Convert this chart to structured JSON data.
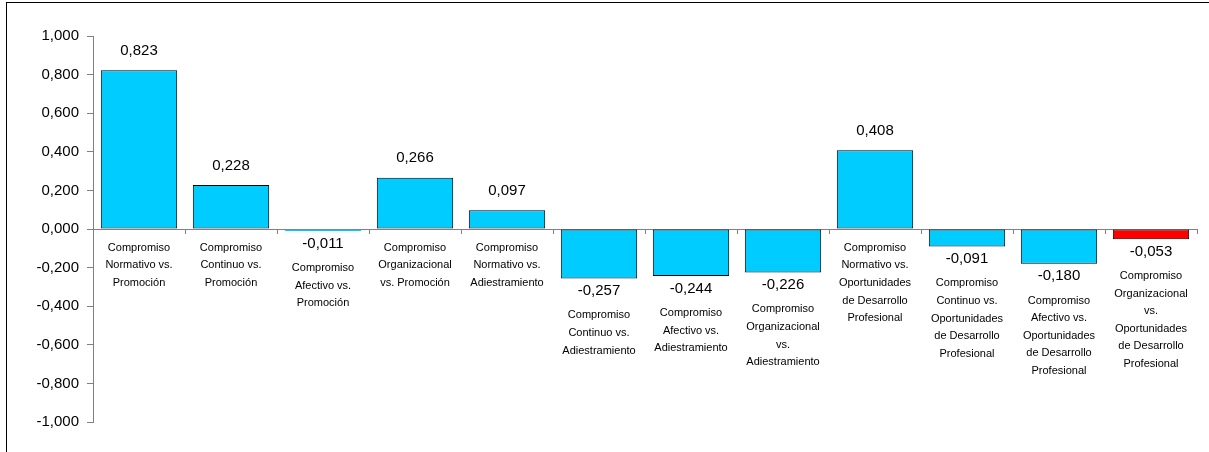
{
  "chart_data": {
    "type": "bar",
    "categories": [
      "Compromiso Normativo vs. Promoción",
      "Compromiso Continuo vs. Promoción",
      "Compromiso Afectivo vs. Promoción",
      "Compromiso Organizacional vs. Promoción",
      "Compromiso Normativo vs. Adiestramiento",
      "Compromiso Continuo vs. Adiestramiento",
      "Compromiso Afectivo vs. Adiestramiento",
      "Compromiso Organizacional vs. Adiestramiento",
      "Compromiso Normativo vs. Oportunidades de Desarrollo Profesional",
      "Compromiso Continuo vs. Oportunidades de Desarrollo Profesional",
      "Compromiso Afectivo vs. Oportunidades de Desarrollo Profesional",
      "Compromiso Organizacional vs. Oportunidades de Desarrollo Profesional"
    ],
    "values": [
      0.823,
      0.228,
      -0.011,
      0.266,
      0.097,
      -0.257,
      -0.244,
      -0.226,
      0.408,
      -0.091,
      -0.18,
      -0.053
    ],
    "colors": [
      "#00ccff",
      "#00ccff",
      "#00ccff",
      "#00ccff",
      "#00ccff",
      "#00ccff",
      "#00ccff",
      "#00ccff",
      "#00ccff",
      "#00ccff",
      "#00ccff",
      "#ff0000"
    ],
    "value_labels": [
      "0,823",
      "0,228",
      "-0,011",
      "0,266",
      "0,097",
      "-0,257",
      "-0,244",
      "-0,226",
      "0,408",
      "-0,091",
      "-0,180",
      "-0,053"
    ],
    "ylim": [
      -1,
      1
    ],
    "yticks": [
      {
        "value": -1,
        "label": "-1,000"
      },
      {
        "value": -0.8,
        "label": "-0,800"
      },
      {
        "value": -0.6,
        "label": "-0,600"
      },
      {
        "value": -0.4,
        "label": "-0,400"
      },
      {
        "value": -0.2,
        "label": "-0,200"
      },
      {
        "value": 0,
        "label": "0,000"
      },
      {
        "value": 0.2,
        "label": "0,200"
      },
      {
        "value": 0.4,
        "label": "0,400"
      },
      {
        "value": 0.6,
        "label": "0,600"
      },
      {
        "value": 0.8,
        "label": "0,800"
      },
      {
        "value": 1,
        "label": "1,000"
      }
    ]
  }
}
